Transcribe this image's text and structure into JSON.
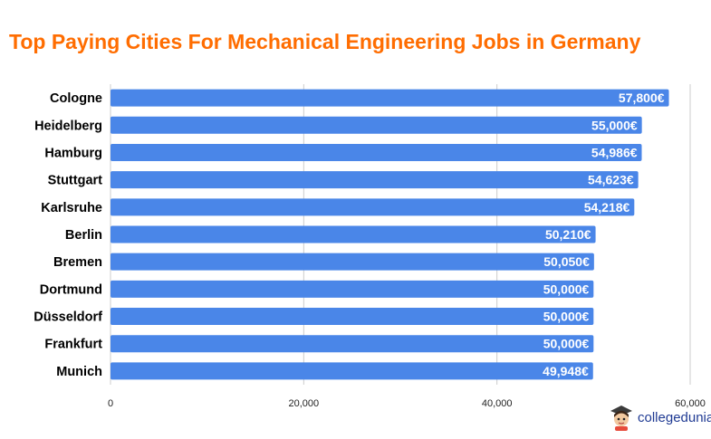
{
  "colors": {
    "title": "#ff6d01",
    "bar": "#4a86e8",
    "bar_label": "#ffffff",
    "grid": "#cccccc",
    "category_text": "#000000",
    "tick_text": "#222222"
  },
  "watermark": {
    "text": "collegedunia"
  },
  "chart_data": {
    "type": "bar",
    "orientation": "horizontal",
    "title": "Top Paying Cities For Mechanical Engineering Jobs in Germany",
    "xlabel": "",
    "ylabel": "",
    "categories": [
      "Cologne",
      "Heidelberg",
      "Hamburg",
      "Stuttgart",
      "Karlsruhe",
      "Berlin",
      "Bremen",
      "Dortmund",
      "Düsseldorf",
      "Frankfurt",
      "Munich"
    ],
    "values": [
      57800,
      55000,
      54986,
      54623,
      54218,
      50210,
      50050,
      50000,
      50000,
      50000,
      49948
    ],
    "data_labels": [
      "57,800€",
      "55,000€",
      "54,986€",
      "54,623€",
      "54,218€",
      "50,210€",
      "50,050€",
      "50,000€",
      "50,000€",
      "50,000€",
      "49,948€"
    ],
    "xlim": [
      0,
      60000
    ],
    "x_ticks": [
      0,
      20000,
      40000,
      60000
    ],
    "x_tick_labels": [
      "0",
      "20,000",
      "40,000",
      "60,000"
    ],
    "grid": true,
    "legend": "none"
  }
}
